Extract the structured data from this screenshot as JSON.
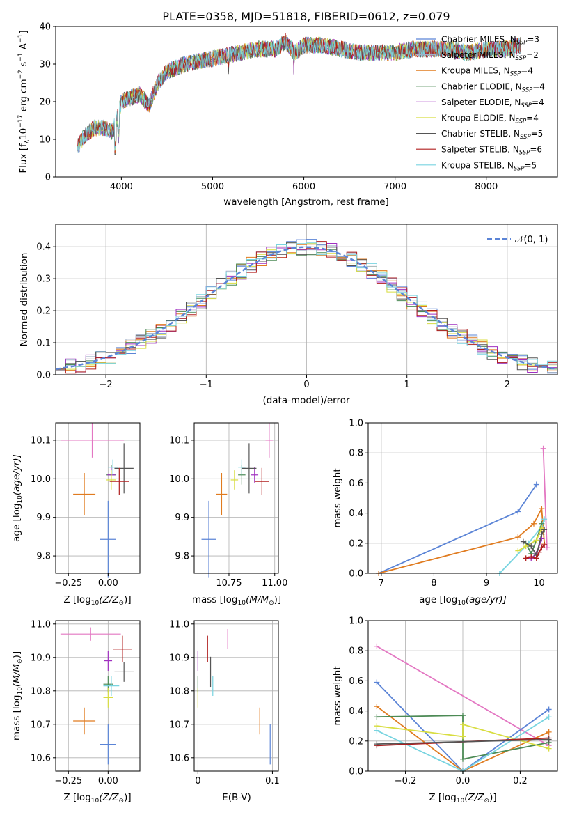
{
  "figure": {
    "title": "PLATE=0358, MJD=51818, FIBERID=0612, z=0.079"
  },
  "colors": {
    "Chabrier MILES": "#5b84d6",
    "Salpeter MILES": "#a1b0c8",
    "Kroupa MILES": "#e07b1f",
    "Chabrier ELODIE": "#4c8a55",
    "Salpeter ELODIE": "#a030c0",
    "Kroupa ELODIE": "#d8dd40",
    "Chabrier STELIB": "#555555",
    "Salpeter STELIB": "#b01f1f",
    "Kroupa STELIB": "#78d4e0",
    "extra": "#e377c2"
  },
  "chart_data": [
    {
      "id": "spectrum",
      "type": "line",
      "xlabel": "wavelength [Angstrom, rest frame]",
      "ylabel": "Flux [f",
      "ylabel_rest": "10",
      "ylabel_exp": "−17",
      "ylabel_unit": " erg cm",
      "ylabel_exp2": "−2",
      "ylabel_s": " s",
      "ylabel_exp3": "−1",
      "ylabel_end": " A",
      "ylabel_exp4": "−1",
      "ylabel_close": "]",
      "xlim": [
        3280,
        8780
      ],
      "ylim": [
        0,
        40
      ],
      "xticks": [
        4000,
        5000,
        6000,
        7000,
        8000
      ],
      "yticks": [
        0,
        10,
        20,
        30,
        40
      ],
      "grid": false,
      "legend_position": "right",
      "legend": [
        {
          "name": "Chabrier MILES, N",
          "sub": "SSP",
          "n": "=3"
        },
        {
          "name": "Salpeter MILES, N",
          "sub": "SSP",
          "n": "=2"
        },
        {
          "name": "Kroupa MILES, N",
          "sub": "SSP",
          "n": "=4"
        },
        {
          "name": "Chabrier ELODIE, N",
          "sub": "SSP",
          "n": "=4"
        },
        {
          "name": "Salpeter ELODIE, N",
          "sub": "SSP",
          "n": "=4"
        },
        {
          "name": "Kroupa ELODIE, N",
          "sub": "SSP",
          "n": "=4"
        },
        {
          "name": "Chabrier STELIB, N",
          "sub": "SSP",
          "n": "=5"
        },
        {
          "name": "Salpeter STELIB, N",
          "sub": "SSP",
          "n": "=6"
        },
        {
          "name": "Kroupa STELIB, N",
          "sub": "SSP",
          "n": "=5"
        }
      ],
      "continuum_x": [
        3520,
        3600,
        3700,
        3800,
        3900,
        3950,
        4000,
        4100,
        4200,
        4300,
        4400,
        4500,
        4700,
        4900,
        5100,
        5300,
        5500,
        5700,
        5800,
        5900,
        6000,
        6200,
        6400,
        6600,
        6800,
        7000,
        7200,
        7400,
        7600,
        7800,
        8000,
        8200,
        8380
      ],
      "continuum_y": [
        8,
        11,
        13,
        13,
        12,
        15,
        20,
        21,
        22,
        19,
        25,
        28,
        30,
        31,
        32,
        33,
        34,
        34,
        36,
        33,
        35,
        35,
        34,
        33,
        33,
        33,
        34,
        34,
        34,
        33,
        34,
        34,
        35
      ]
    },
    {
      "id": "residuals",
      "type": "line",
      "xlabel": "(data-model)/error",
      "ylabel": "Normed distribution",
      "xlim": [
        -2.5,
        2.5
      ],
      "ylim": [
        0,
        0.47
      ],
      "xticks": [
        -2,
        -1,
        0,
        1,
        2
      ],
      "xtick_labels": [
        "−2",
        "−1",
        "0",
        "1",
        "2"
      ],
      "yticks": [
        0.0,
        0.1,
        0.2,
        0.3,
        0.4
      ],
      "ytick_labels": [
        "0.0",
        "0.1",
        "0.2",
        "0.3",
        "0.4"
      ],
      "grid": true,
      "bin_width": 0.1,
      "legend": [
        {
          "name": "𝒩(0, 1)",
          "style": "dashed"
        }
      ]
    },
    {
      "id": "age-vs-Z",
      "type": "scatter",
      "xlabel": "Z [log",
      "xlabel_sub": "10",
      "xlabel_rest": "(Z/Z",
      "xlabel_sun": "⊙",
      "xlabel_end": ")]",
      "ylabel": "age  [log",
      "ylabel_sub": "10",
      "ylabel_rest": "(age/yr)]",
      "xlim": [
        -0.33,
        0.2
      ],
      "ylim": [
        9.755,
        10.145
      ],
      "xticks": [
        -0.25,
        0.0
      ],
      "xtick_labels": [
        "−0.25",
        "0.00"
      ],
      "yticks": [
        9.8,
        9.9,
        10.0,
        10.1
      ],
      "ytick_labels": [
        "9.8",
        "9.9",
        "10.0",
        "10.1"
      ],
      "grid": true,
      "points": [
        {
          "color": "Chabrier MILES",
          "x": 0.0,
          "y": 9.843,
          "xerr": 0.05,
          "yerr": 0.1
        },
        {
          "color": "Kroupa MILES",
          "x": -0.15,
          "y": 9.96,
          "xerr": 0.07,
          "yerr": 0.055
        },
        {
          "color": "Chabrier ELODIE",
          "x": 0.02,
          "y": 10.01,
          "xerr": 0.03,
          "yerr": 0.025
        },
        {
          "color": "Salpeter ELODIE",
          "x": 0.02,
          "y": 10.01,
          "xerr": 0.025,
          "yerr": 0.02
        },
        {
          "color": "Kroupa ELODIE",
          "x": 0.02,
          "y": 9.997,
          "xerr": 0.03,
          "yerr": 0.025
        },
        {
          "color": "Chabrier STELIB",
          "x": 0.1,
          "y": 10.027,
          "xerr": 0.06,
          "yerr": 0.065
        },
        {
          "color": "Salpeter STELIB",
          "x": 0.07,
          "y": 9.993,
          "xerr": 0.06,
          "yerr": 0.035
        },
        {
          "color": "Kroupa STELIB",
          "x": 0.03,
          "y": 10.03,
          "xerr": 0.03,
          "yerr": 0.02
        },
        {
          "color": "extra",
          "x": -0.1,
          "y": 10.1,
          "xerr": 0.2,
          "yerr": 0.045
        }
      ]
    },
    {
      "id": "age-vs-mass",
      "type": "scatter",
      "xlabel": "mass [log",
      "xlabel_sub": "10",
      "xlabel_rest": "(M/M",
      "xlabel_sun": "⊙",
      "xlabel_end": ")]",
      "xlim": [
        10.56,
        11.02
      ],
      "ylim": [
        9.755,
        10.145
      ],
      "xticks": [
        10.75,
        11.0
      ],
      "xtick_labels": [
        "10.75",
        "11.00"
      ],
      "yticks": [
        9.8,
        9.9,
        10.0,
        10.1
      ],
      "ytick_labels": [
        "9.8",
        "9.9",
        "10.0",
        "10.1"
      ],
      "grid": true,
      "points": [
        {
          "color": "Chabrier MILES",
          "x": 10.64,
          "y": 9.843,
          "xerr": 0.04,
          "yerr": 0.1
        },
        {
          "color": "Kroupa MILES",
          "x": 10.71,
          "y": 9.96,
          "xerr": 0.03,
          "yerr": 0.055
        },
        {
          "color": "Chabrier ELODIE",
          "x": 10.82,
          "y": 10.01,
          "xerr": 0.02,
          "yerr": 0.025
        },
        {
          "color": "Salpeter ELODIE",
          "x": 10.89,
          "y": 10.01,
          "xerr": 0.02,
          "yerr": 0.02
        },
        {
          "color": "Kroupa ELODIE",
          "x": 10.78,
          "y": 9.997,
          "xerr": 0.02,
          "yerr": 0.025
        },
        {
          "color": "Chabrier STELIB",
          "x": 10.86,
          "y": 10.027,
          "xerr": 0.04,
          "yerr": 0.065
        },
        {
          "color": "Salpeter STELIB",
          "x": 10.93,
          "y": 9.993,
          "xerr": 0.04,
          "yerr": 0.035
        },
        {
          "color": "Kroupa STELIB",
          "x": 10.82,
          "y": 10.03,
          "xerr": 0.02,
          "yerr": 0.02
        },
        {
          "color": "extra",
          "x": 10.97,
          "y": 10.1,
          "xerr": 0.02,
          "yerr": 0.045
        }
      ]
    },
    {
      "id": "weight-vs-age",
      "type": "line",
      "xlabel": "age  [log",
      "xlabel_sub": "10",
      "xlabel_rest": "(age/yr)]",
      "ylabel": "mass weight",
      "xlim": [
        6.75,
        10.35
      ],
      "ylim": [
        0,
        1
      ],
      "xticks": [
        7,
        8,
        9,
        10
      ],
      "yticks": [
        0.0,
        0.2,
        0.4,
        0.6,
        0.8,
        1.0
      ],
      "ytick_labels": [
        "0.0",
        "0.2",
        "0.4",
        "0.6",
        "0.8",
        "1.0"
      ],
      "grid": true,
      "series": [
        {
          "color": "Chabrier MILES",
          "x": [
            6.95,
            9.6,
            9.95
          ],
          "y": [
            0.0,
            0.41,
            0.59
          ]
        },
        {
          "color": "Kroupa MILES",
          "x": [
            6.95,
            9.6,
            9.9,
            10.05,
            10.1
          ],
          "y": [
            0.0,
            0.24,
            0.33,
            0.43,
            0.2
          ]
        },
        {
          "color": "extra",
          "x": [
            10.08,
            10.15
          ],
          "y": [
            0.83,
            0.17
          ]
        },
        {
          "color": "Kroupa STELIB",
          "x": [
            9.25,
            9.8,
            10.05,
            10.1
          ],
          "y": [
            0.0,
            0.2,
            0.31,
            0.36
          ]
        },
        {
          "color": "Chabrier ELODIE",
          "x": [
            9.75,
            9.85,
            9.95,
            10.05
          ],
          "y": [
            0.2,
            0.13,
            0.22,
            0.33
          ]
        },
        {
          "color": "Kroupa ELODIE",
          "x": [
            9.6,
            9.75,
            9.95,
            10.05
          ],
          "y": [
            0.15,
            0.18,
            0.22,
            0.3
          ]
        },
        {
          "color": "Salpeter ELODIE",
          "x": [
            9.85,
            9.95,
            10.05
          ],
          "y": [
            0.1,
            0.13,
            0.23
          ]
        },
        {
          "color": "Chabrier STELIB",
          "x": [
            9.7,
            9.85,
            9.95,
            10.05,
            10.1
          ],
          "y": [
            0.21,
            0.18,
            0.12,
            0.26,
            0.29
          ]
        },
        {
          "color": "Salpeter STELIB",
          "x": [
            9.75,
            9.85,
            9.95,
            10.0,
            10.05,
            10.1
          ],
          "y": [
            0.1,
            0.11,
            0.1,
            0.14,
            0.17,
            0.19
          ]
        }
      ]
    },
    {
      "id": "mass-vs-Z",
      "type": "scatter",
      "xlabel": "Z [log",
      "xlabel_sub": "10",
      "xlabel_rest": "(Z/Z",
      "xlabel_sun": "⊙",
      "xlabel_end": ")]",
      "ylabel": "mass [log",
      "ylabel_sub": "10",
      "ylabel_rest": "(M/M",
      "ylabel_sun": "⊙",
      "ylabel_end": ")]",
      "xlim": [
        -0.33,
        0.2
      ],
      "ylim": [
        10.56,
        11.01
      ],
      "xticks": [
        -0.25,
        0.0
      ],
      "xtick_labels": [
        "−0.25",
        "0.00"
      ],
      "yticks": [
        10.6,
        10.7,
        10.8,
        10.9,
        11.0
      ],
      "ytick_labels": [
        "10.6",
        "10.7",
        "10.8",
        "10.9",
        "11.0"
      ],
      "grid": true,
      "points": [
        {
          "color": "Chabrier MILES",
          "x": 0.0,
          "y": 10.64,
          "xerr": 0.05,
          "yerr": 0.06
        },
        {
          "color": "Kroupa MILES",
          "x": -0.15,
          "y": 10.71,
          "xerr": 0.07,
          "yerr": 0.04
        },
        {
          "color": "Chabrier ELODIE",
          "x": 0.0,
          "y": 10.82,
          "xerr": 0.03,
          "yerr": 0.025
        },
        {
          "color": "Salpeter ELODIE",
          "x": 0.0,
          "y": 10.89,
          "xerr": 0.025,
          "yerr": 0.03
        },
        {
          "color": "Kroupa ELODIE",
          "x": 0.0,
          "y": 10.78,
          "xerr": 0.03,
          "yerr": 0.03
        },
        {
          "color": "Chabrier STELIB",
          "x": 0.1,
          "y": 10.857,
          "xerr": 0.06,
          "yerr": 0.03
        },
        {
          "color": "Salpeter STELIB",
          "x": 0.09,
          "y": 10.925,
          "xerr": 0.06,
          "yerr": 0.04
        },
        {
          "color": "Kroupa STELIB",
          "x": 0.02,
          "y": 10.815,
          "xerr": 0.05,
          "yerr": 0.03
        },
        {
          "color": "extra",
          "x": -0.11,
          "y": 10.97,
          "xerr": 0.19,
          "yerr": 0.02
        }
      ]
    },
    {
      "id": "mass-vs-ebv",
      "type": "scatter",
      "xlabel": "E(B-V)",
      "xlim": [
        -0.005,
        0.108
      ],
      "ylim": [
        10.56,
        11.01
      ],
      "xticks": [
        0.0,
        0.1
      ],
      "xtick_labels": [
        "0",
        "0.1"
      ],
      "yticks": [
        10.6,
        10.7,
        10.8,
        10.9,
        11.0
      ],
      "ytick_labels": [
        "10.6",
        "10.7",
        "10.8",
        "10.9",
        "11.0"
      ],
      "grid": true,
      "points": [
        {
          "color": "Chabrier MILES",
          "x": 0.097,
          "y": 10.64,
          "xerr": 0.0,
          "yerr": 0.06
        },
        {
          "color": "Kroupa MILES",
          "x": 0.083,
          "y": 10.71,
          "xerr": 0.0,
          "yerr": 0.04
        },
        {
          "color": "Chabrier ELODIE",
          "x": 0.0,
          "y": 10.82,
          "xerr": 0.0,
          "yerr": 0.025
        },
        {
          "color": "Salpeter ELODIE",
          "x": 0.0,
          "y": 10.89,
          "xerr": 0.0,
          "yerr": 0.03
        },
        {
          "color": "Kroupa ELODIE",
          "x": 0.0,
          "y": 10.78,
          "xerr": 0.0,
          "yerr": 0.03
        },
        {
          "color": "Chabrier STELIB",
          "x": 0.017,
          "y": 10.857,
          "xerr": 0.0,
          "yerr": 0.045
        },
        {
          "color": "Salpeter STELIB",
          "x": 0.013,
          "y": 10.925,
          "xerr": 0.0,
          "yerr": 0.04
        },
        {
          "color": "Kroupa STELIB",
          "x": 0.02,
          "y": 10.815,
          "xerr": 0.0,
          "yerr": 0.03
        },
        {
          "color": "extra",
          "x": 0.04,
          "y": 10.955,
          "xerr": 0.0,
          "yerr": 0.03
        }
      ]
    },
    {
      "id": "weight-vs-Z",
      "type": "line",
      "xlabel": "Z [log",
      "xlabel_sub": "10",
      "xlabel_rest": "(Z/Z",
      "xlabel_sun": "⊙",
      "xlabel_end": ")]",
      "ylabel": "mass weight",
      "xlim": [
        -0.33,
        0.33
      ],
      "ylim": [
        0,
        1
      ],
      "xticks": [
        -0.2,
        0.0,
        0.2
      ],
      "xtick_labels": [
        "−0.2",
        "0.0",
        "0.2"
      ],
      "yticks": [
        0.0,
        0.2,
        0.4,
        0.6,
        0.8,
        1.0
      ],
      "ytick_labels": [
        "0.0",
        "0.2",
        "0.4",
        "0.6",
        "0.8",
        "1.0"
      ],
      "grid": true,
      "series": [
        {
          "color": "extra",
          "x": [
            -0.3,
            0.3
          ],
          "y": [
            0.83,
            0.17
          ]
        },
        {
          "color": "Chabrier MILES",
          "x": [
            -0.3,
            0.0,
            0.3
          ],
          "y": [
            0.59,
            0.0,
            0.41
          ]
        },
        {
          "color": "Kroupa MILES",
          "x": [
            -0.3,
            0.0,
            0.3
          ],
          "y": [
            0.43,
            0.0,
            0.26
          ]
        },
        {
          "color": "Chabrier ELODIE",
          "x": [
            -0.3,
            0.0,
            0.0,
            0.3
          ],
          "y": [
            0.36,
            0.37,
            0.08,
            0.19
          ]
        },
        {
          "color": "Kroupa ELODIE",
          "x": [
            -0.3,
            0.0,
            0.0,
            0.3
          ],
          "y": [
            0.3,
            0.23,
            0.31,
            0.15
          ]
        },
        {
          "color": "Kroupa STELIB",
          "x": [
            -0.3,
            0.0,
            0.3
          ],
          "y": [
            0.27,
            0.0,
            0.36
          ]
        },
        {
          "color": "Salpeter STELIB",
          "x": [
            -0.3,
            0.3
          ],
          "y": [
            0.17,
            0.22
          ]
        },
        {
          "color": "Chabrier STELIB",
          "x": [
            -0.3,
            0.3
          ],
          "y": [
            0.18,
            0.21
          ]
        }
      ]
    }
  ]
}
